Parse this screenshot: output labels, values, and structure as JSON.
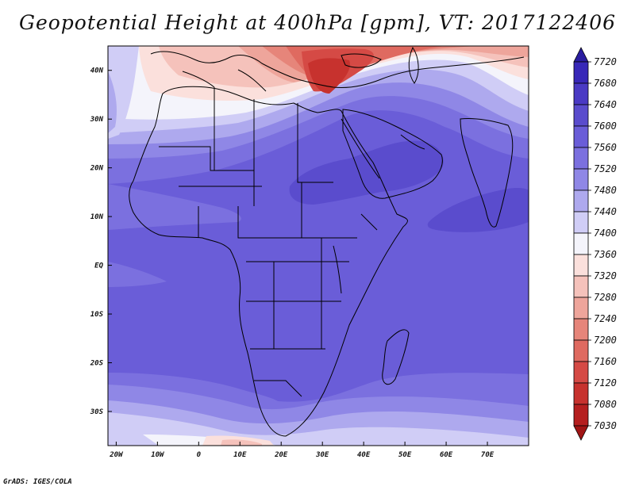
{
  "title": "Geopotential Height at 400hPa [gpm], VT: 2017122406",
  "credit": "GrADS: IGES/COLA",
  "map": {
    "lon_labels": [
      "20W",
      "10W",
      "0",
      "10E",
      "20E",
      "30E",
      "40E",
      "50E",
      "60E",
      "70E"
    ],
    "lat_labels": [
      "40N",
      "30N",
      "20N",
      "10N",
      "EQ",
      "10S",
      "20S",
      "30S"
    ],
    "lon_values": [
      -20,
      -10,
      0,
      10,
      20,
      30,
      40,
      50,
      60,
      70
    ],
    "lat_values": [
      40,
      30,
      20,
      10,
      0,
      -10,
      -20,
      -30
    ],
    "lon_range": [
      -22,
      80
    ],
    "lat_range": [
      -37,
      45
    ]
  },
  "colorbar": {
    "labels": [
      "7720",
      "7680",
      "7640",
      "7600",
      "7560",
      "7520",
      "7480",
      "7440",
      "7400",
      "7360",
      "7320",
      "7280",
      "7240",
      "7200",
      "7160",
      "7120",
      "7080",
      "7030"
    ],
    "colors": [
      "#2a1da0",
      "#3828b8",
      "#4a3ac4",
      "#5a4ccd",
      "#6a5dd8",
      "#7b70df",
      "#8f87e6",
      "#aea9ee",
      "#d0cdf6",
      "#f4f4fb",
      "#fbe0dc",
      "#f5c2bb",
      "#eea59b",
      "#e6857a",
      "#df6a60",
      "#d54a45",
      "#c7322e",
      "#b51f1f",
      "#a01515"
    ]
  }
}
